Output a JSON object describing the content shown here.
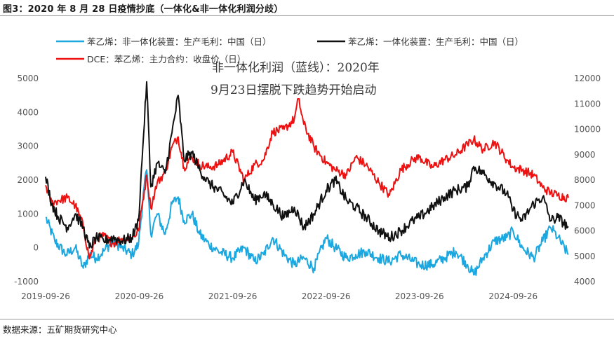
{
  "title": "图3：2020 年 8 月 28 日疫情抄底（一体化&非一体化利润分歧）",
  "source": "数据来源：五矿期货研究中心",
  "annotation": {
    "line1": "非一体化利润（蓝线）：2020年",
    "line2": "9月23日摆脱下跌趋势开始启动"
  },
  "chart_data": {
    "type": "line",
    "x_tick_labels": [
      "2019-09-26",
      "2020-09-26",
      "2021-09-26",
      "2022-09-26",
      "2023-09-26",
      "2024-09-26"
    ],
    "x_range": [
      "2019-09-26",
      "2025-04-30"
    ],
    "y_left": {
      "ylim": [
        -1000,
        5000
      ],
      "ticks": [
        -1000,
        0,
        1000,
        2000,
        3000,
        4000,
        5000
      ]
    },
    "y_right": {
      "ylim": [
        4000,
        12000
      ],
      "ticks": [
        4000,
        5000,
        6000,
        7000,
        8000,
        9000,
        10000,
        11000,
        12000
      ]
    },
    "legend_placement": "top",
    "series": [
      {
        "name": "苯乙烯：非一体化装置：生产毛利：中国（日）",
        "color": "#1ba8e0",
        "axis": "left",
        "points": [
          [
            "2019-09-26",
            900
          ],
          [
            "2019-11-01",
            200
          ],
          [
            "2019-12-15",
            -200
          ],
          [
            "2020-01-20",
            0
          ],
          [
            "2020-02-20",
            -600
          ],
          [
            "2020-03-15",
            -200
          ],
          [
            "2020-04-10",
            -300
          ],
          [
            "2020-05-10",
            -100
          ],
          [
            "2020-06-15",
            200
          ],
          [
            "2020-07-20",
            0
          ],
          [
            "2020-08-28",
            -200
          ],
          [
            "2020-09-23",
            100
          ],
          [
            "2020-10-15",
            1800
          ],
          [
            "2020-10-25",
            2300
          ],
          [
            "2020-11-10",
            400
          ],
          [
            "2020-12-05",
            1000
          ],
          [
            "2021-01-05",
            400
          ],
          [
            "2021-02-01",
            1300
          ],
          [
            "2021-02-25",
            1500
          ],
          [
            "2021-03-20",
            800
          ],
          [
            "2021-04-20",
            1000
          ],
          [
            "2021-05-20",
            400
          ],
          [
            "2021-06-25",
            100
          ],
          [
            "2021-08-01",
            -100
          ],
          [
            "2021-09-26",
            -300
          ],
          [
            "2021-11-10",
            0
          ],
          [
            "2021-12-20",
            -400
          ],
          [
            "2022-01-25",
            -200
          ],
          [
            "2022-03-01",
            300
          ],
          [
            "2022-04-15",
            -200
          ],
          [
            "2022-05-25",
            -500
          ],
          [
            "2022-07-01",
            -300
          ],
          [
            "2022-08-10",
            -600
          ],
          [
            "2022-09-26",
            300
          ],
          [
            "2022-11-01",
            0
          ],
          [
            "2022-12-15",
            -300
          ],
          [
            "2023-01-20",
            -200
          ],
          [
            "2023-03-01",
            -100
          ],
          [
            "2023-04-20",
            -300
          ],
          [
            "2023-06-01",
            -400
          ],
          [
            "2023-07-15",
            -200
          ],
          [
            "2023-09-01",
            -400
          ],
          [
            "2023-09-26",
            -500
          ],
          [
            "2023-11-15",
            -500
          ],
          [
            "2024-01-01",
            -300
          ],
          [
            "2024-02-15",
            -100
          ],
          [
            "2024-04-01",
            -500
          ],
          [
            "2024-04-25",
            -800
          ],
          [
            "2024-06-01",
            -300
          ],
          [
            "2024-07-15",
            200
          ],
          [
            "2024-09-01",
            300
          ],
          [
            "2024-09-26",
            500
          ],
          [
            "2024-11-01",
            0
          ],
          [
            "2024-12-15",
            -300
          ],
          [
            "2025-01-20",
            200
          ],
          [
            "2025-02-20",
            600
          ],
          [
            "2025-03-20",
            300
          ],
          [
            "2025-04-30",
            -200
          ]
        ]
      },
      {
        "name": "苯乙烯：一体化装置：生产毛利：中国（日）",
        "color": "#111111",
        "axis": "left",
        "points": [
          [
            "2019-09-26",
            2100
          ],
          [
            "2019-10-20",
            1300
          ],
          [
            "2019-11-15",
            900
          ],
          [
            "2019-12-20",
            600
          ],
          [
            "2020-01-20",
            1000
          ],
          [
            "2020-02-20",
            600
          ],
          [
            "2020-03-15",
            0
          ],
          [
            "2020-04-10",
            300
          ],
          [
            "2020-05-10",
            200
          ],
          [
            "2020-06-15",
            300
          ],
          [
            "2020-07-20",
            200
          ],
          [
            "2020-08-28",
            300
          ],
          [
            "2020-09-23",
            800
          ],
          [
            "2020-10-10",
            3000
          ],
          [
            "2020-10-25",
            4900
          ],
          [
            "2020-11-10",
            1800
          ],
          [
            "2020-12-05",
            2500
          ],
          [
            "2021-01-05",
            2200
          ],
          [
            "2021-02-01",
            3400
          ],
          [
            "2021-02-25",
            4500
          ],
          [
            "2021-03-20",
            2600
          ],
          [
            "2021-04-20",
            2800
          ],
          [
            "2021-05-20",
            2300
          ],
          [
            "2021-06-25",
            1900
          ],
          [
            "2021-08-01",
            1700
          ],
          [
            "2021-09-26",
            1300
          ],
          [
            "2021-11-10",
            2000
          ],
          [
            "2021-12-20",
            1400
          ],
          [
            "2022-01-25",
            1600
          ],
          [
            "2022-03-01",
            1300
          ],
          [
            "2022-04-15",
            900
          ],
          [
            "2022-05-25",
            1200
          ],
          [
            "2022-07-01",
            600
          ],
          [
            "2022-08-10",
            1000
          ],
          [
            "2022-09-26",
            1700
          ],
          [
            "2022-11-01",
            2000
          ],
          [
            "2022-12-15",
            1400
          ],
          [
            "2023-01-20",
            1200
          ],
          [
            "2023-03-01",
            900
          ],
          [
            "2023-04-20",
            500
          ],
          [
            "2023-06-01",
            300
          ],
          [
            "2023-07-15",
            500
          ],
          [
            "2023-09-01",
            800
          ],
          [
            "2023-09-26",
            900
          ],
          [
            "2023-11-15",
            1200
          ],
          [
            "2024-01-01",
            1500
          ],
          [
            "2024-02-15",
            1700
          ],
          [
            "2024-04-01",
            1800
          ],
          [
            "2024-04-25",
            2400
          ],
          [
            "2024-06-01",
            2200
          ],
          [
            "2024-07-15",
            1900
          ],
          [
            "2024-09-01",
            1600
          ],
          [
            "2024-09-26",
            1100
          ],
          [
            "2024-11-01",
            800
          ],
          [
            "2024-12-15",
            1300
          ],
          [
            "2025-01-20",
            1500
          ],
          [
            "2025-02-20",
            800
          ],
          [
            "2025-03-20",
            900
          ],
          [
            "2025-04-30",
            600
          ]
        ]
      },
      {
        "name": "DCE：苯乙烯：主力合约：收盘价（日）",
        "color": "#ee1111",
        "axis": "right",
        "points": [
          [
            "2019-09-26",
            7800
          ],
          [
            "2019-10-20",
            7100
          ],
          [
            "2019-11-15",
            7200
          ],
          [
            "2019-12-20",
            7300
          ],
          [
            "2020-01-20",
            7000
          ],
          [
            "2020-02-20",
            6200
          ],
          [
            "2020-03-15",
            4900
          ],
          [
            "2020-04-10",
            5700
          ],
          [
            "2020-05-10",
            5800
          ],
          [
            "2020-06-15",
            5500
          ],
          [
            "2020-07-20",
            5700
          ],
          [
            "2020-08-28",
            5700
          ],
          [
            "2020-09-23",
            6000
          ],
          [
            "2020-10-10",
            7200
          ],
          [
            "2020-10-25",
            8200
          ],
          [
            "2020-11-10",
            6900
          ],
          [
            "2020-12-05",
            7900
          ],
          [
            "2021-01-05",
            8300
          ],
          [
            "2021-02-01",
            9300
          ],
          [
            "2021-02-25",
            9700
          ],
          [
            "2021-03-20",
            8500
          ],
          [
            "2021-04-20",
            8900
          ],
          [
            "2021-05-20",
            8600
          ],
          [
            "2021-06-25",
            8500
          ],
          [
            "2021-08-01",
            8600
          ],
          [
            "2021-09-26",
            9100
          ],
          [
            "2021-11-10",
            8000
          ],
          [
            "2021-12-20",
            8600
          ],
          [
            "2022-01-25",
            8800
          ],
          [
            "2022-03-01",
            9900
          ],
          [
            "2022-04-15",
            10000
          ],
          [
            "2022-05-25",
            10400
          ],
          [
            "2022-06-10",
            11200
          ],
          [
            "2022-07-01",
            10200
          ],
          [
            "2022-08-10",
            9300
          ],
          [
            "2022-09-26",
            8700
          ],
          [
            "2022-11-01",
            8400
          ],
          [
            "2022-12-15",
            8200
          ],
          [
            "2023-01-20",
            8900
          ],
          [
            "2023-03-01",
            8600
          ],
          [
            "2023-04-20",
            7900
          ],
          [
            "2023-06-01",
            7400
          ],
          [
            "2023-07-15",
            8400
          ],
          [
            "2023-09-01",
            8800
          ],
          [
            "2023-09-26",
            8900
          ],
          [
            "2023-11-15",
            8500
          ],
          [
            "2024-01-01",
            8800
          ],
          [
            "2024-02-15",
            9000
          ],
          [
            "2024-04-01",
            9400
          ],
          [
            "2024-04-25",
            9600
          ],
          [
            "2024-06-01",
            9200
          ],
          [
            "2024-07-15",
            9500
          ],
          [
            "2024-09-01",
            8800
          ],
          [
            "2024-09-26",
            8500
          ],
          [
            "2024-11-01",
            8400
          ],
          [
            "2024-12-15",
            8200
          ],
          [
            "2025-01-20",
            7700
          ],
          [
            "2025-02-20",
            7500
          ],
          [
            "2025-03-20",
            7400
          ],
          [
            "2025-04-30",
            7300
          ]
        ]
      }
    ]
  }
}
